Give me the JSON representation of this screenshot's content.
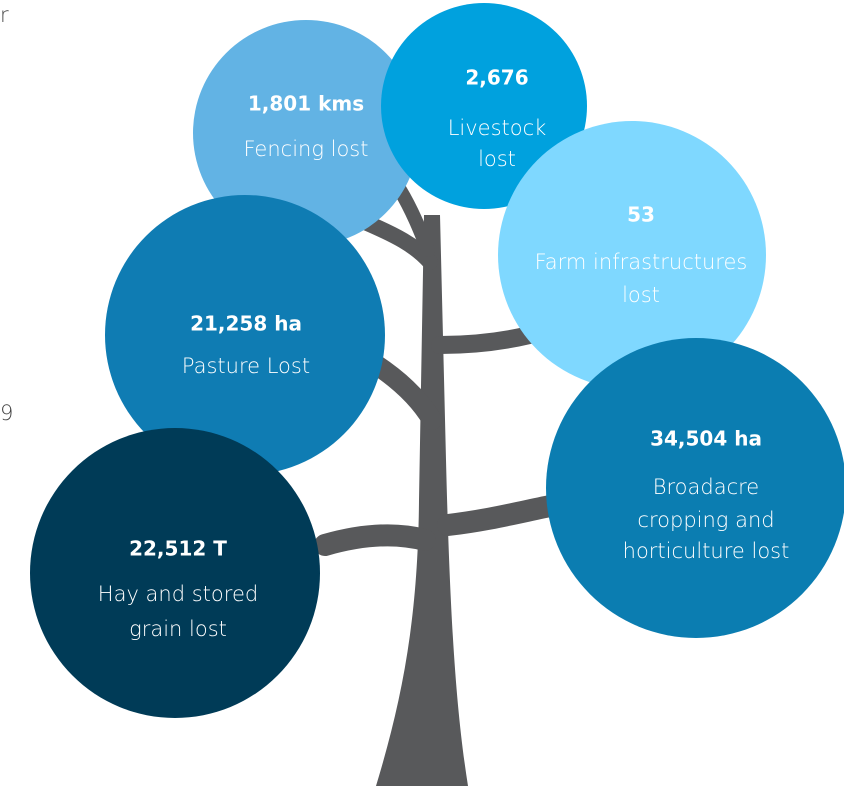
{
  "fragments": [
    "r",
    "9"
  ],
  "nodes": [
    {
      "value": "1,801 kms",
      "label": [
        "Fencing lost"
      ]
    },
    {
      "value": "2,676",
      "label": [
        "Livestock",
        "lost"
      ]
    },
    {
      "value": "53",
      "label": [
        "Farm infrastructures",
        "lost"
      ]
    },
    {
      "value": "21,258 ha",
      "label": [
        "Pasture Lost"
      ]
    },
    {
      "value": "34,504 ha",
      "label": [
        "Broadacre",
        "cropping and",
        "horticulture lost"
      ]
    },
    {
      "value": "22,512 T",
      "label": [
        "Hay and stored",
        "grain lost"
      ]
    }
  ]
}
